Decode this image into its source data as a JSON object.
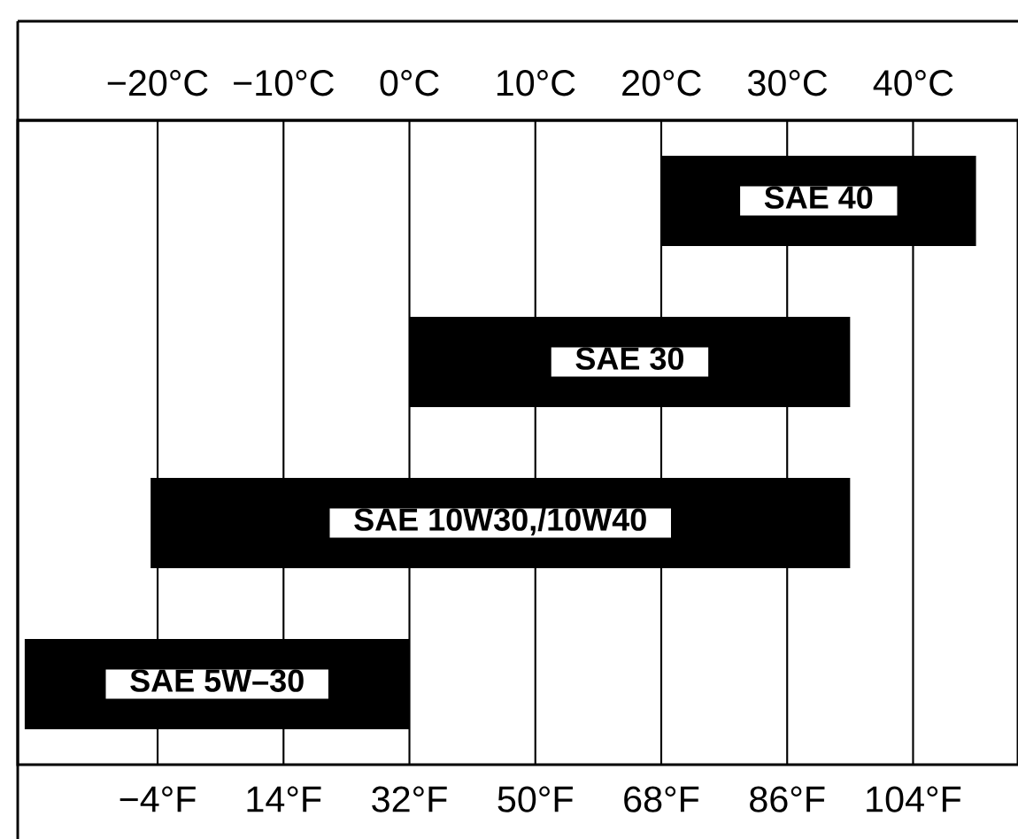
{
  "chart_data": {
    "type": "bar",
    "orientation": "horizontal",
    "categories": [
      "SAE 40",
      "SAE 30",
      "SAE 10W30,/10W40",
      "SAE 5W–30"
    ],
    "base": [
      68,
      32,
      -5,
      -23
    ],
    "values": [
      45,
      63,
      100,
      55
    ],
    "color": "#000000",
    "xlim": [
      -24,
      119
    ],
    "xticks": [
      {
        "value": -4,
        "label": "−4°F"
      },
      {
        "value": 14,
        "label": "14°F"
      },
      {
        "value": 32,
        "label": "32°F"
      },
      {
        "value": 50,
        "label": "50°F"
      },
      {
        "value": 68,
        "label": "68°F"
      },
      {
        "value": 86,
        "label": "86°F"
      },
      {
        "value": 104,
        "label": "104°F"
      }
    ],
    "x2lim": [
      -31.1,
      48.3
    ],
    "x2ticks": [
      {
        "value": -20,
        "label": "−20°C"
      },
      {
        "value": -10,
        "label": "−10°C"
      },
      {
        "value": 0,
        "label": "0°C"
      },
      {
        "value": 10,
        "label": "10°C"
      },
      {
        "value": 20,
        "label": "20°C"
      },
      {
        "value": 30,
        "label": "30°C"
      },
      {
        "value": 40,
        "label": "40°C"
      }
    ],
    "grid": "x"
  }
}
